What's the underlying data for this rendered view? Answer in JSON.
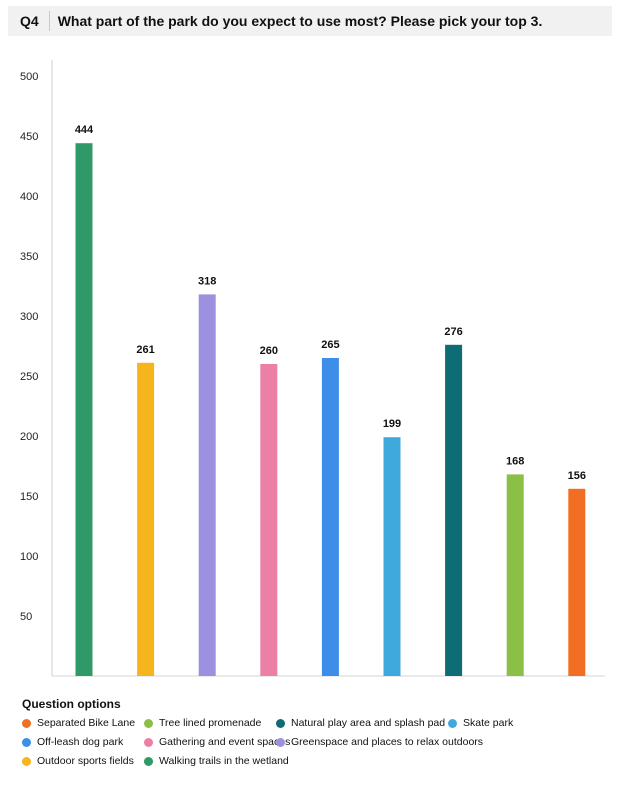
{
  "question": {
    "number": "Q4",
    "title": "What part of the park do you expect to use most? Please pick your top 3."
  },
  "chart_data": {
    "type": "bar",
    "categories": [
      "Walking trails in the wetland",
      "Outdoor sports fields",
      "Greenspace and places to relax outdoors",
      "Gathering and event spaces",
      "Off-leash dog park",
      "Skate park",
      "Natural play area and splash pad",
      "Tree lined promenade",
      "Separated Bike Lane"
    ],
    "values": [
      444,
      261,
      318,
      260,
      265,
      199,
      276,
      168,
      156
    ],
    "colors": [
      "#2f9a67",
      "#f6b51d",
      "#9b91de",
      "#ec7fa6",
      "#3d8ee8",
      "#3fa8dc",
      "#0e6d74",
      "#8cbf45",
      "#f26e22"
    ],
    "y_ticks": [
      "50",
      "100",
      "150",
      "200",
      "250",
      "300",
      "350",
      "400",
      "450",
      "500"
    ],
    "ylim": [
      0,
      500
    ],
    "grid": false,
    "legend_position": "bottom"
  },
  "legend": {
    "title": "Question options",
    "items": [
      {
        "label": "Separated Bike Lane",
        "color": "#f26e22"
      },
      {
        "label": "Tree lined promenade",
        "color": "#8cbf45"
      },
      {
        "label": "Natural play area and splash pad",
        "color": "#0e6d74"
      },
      {
        "label": "Skate park",
        "color": "#3fa8dc"
      },
      {
        "label": "Off-leash dog park",
        "color": "#3d8ee8"
      },
      {
        "label": "Gathering and event spaces",
        "color": "#ec7fa6"
      },
      {
        "label": "Greenspace and places to relax outdoors",
        "color": "#9b91de"
      },
      {
        "label": "",
        "color": ""
      },
      {
        "label": "Outdoor sports fields",
        "color": "#f6b51d"
      },
      {
        "label": "Walking trails in the wetland",
        "color": "#2f9a67"
      }
    ]
  }
}
